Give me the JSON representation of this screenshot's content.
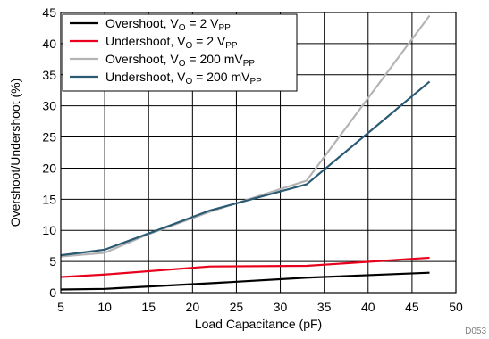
{
  "chart_data": {
    "type": "line",
    "xlabel": "Load Capacitance (pF)",
    "ylabel": "Overshoot/Undershoot (%)",
    "xlim": [
      5,
      50
    ],
    "ylim": [
      0,
      45
    ],
    "xticks": [
      5,
      10,
      15,
      20,
      25,
      30,
      35,
      40,
      45,
      50
    ],
    "yticks": [
      0,
      5,
      10,
      15,
      20,
      25,
      30,
      35,
      40,
      45
    ],
    "grid": true,
    "legend_position": "top-left",
    "figure_code": "D053",
    "series": [
      {
        "name": "Overshoot, VO = 2 VPP",
        "label_parts": [
          "Overshoot, V",
          "O",
          " = 2 V",
          "PP"
        ],
        "color": "#000000",
        "x": [
          5,
          10,
          22,
          33,
          47
        ],
        "y": [
          0.5,
          0.6,
          1.5,
          2.4,
          3.2
        ]
      },
      {
        "name": "Undershoot, VO = 2 VPP",
        "label_parts": [
          "Undershoot, V",
          "O",
          " = 2 V",
          "PP"
        ],
        "color": "#e8001c",
        "x": [
          5,
          10,
          22,
          33,
          47
        ],
        "y": [
          2.5,
          2.9,
          4.2,
          4.3,
          5.6
        ]
      },
      {
        "name": "Overshoot, VO = 200 mVPP",
        "label_parts": [
          "Overshoot, V",
          "O",
          " = 200 mV",
          "PP"
        ],
        "color": "#b4b4b4",
        "x": [
          5,
          10,
          15,
          22,
          33,
          47
        ],
        "y": [
          5.8,
          6.4,
          9.4,
          13.0,
          18.0,
          44.5
        ]
      },
      {
        "name": "Undershoot, VO = 200 mVPP",
        "label_parts": [
          "Undershoot, V",
          "O",
          " = 200 mV",
          "PP"
        ],
        "color": "#2b5a73",
        "x": [
          5,
          10,
          15,
          22,
          33,
          47
        ],
        "y": [
          6.0,
          6.9,
          9.5,
          13.2,
          17.4,
          33.9
        ]
      }
    ]
  }
}
